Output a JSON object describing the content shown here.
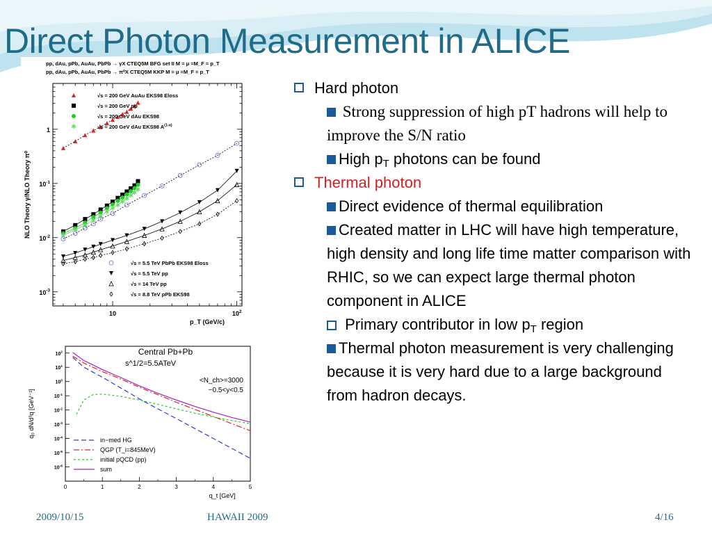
{
  "slide": {
    "title": "Direct Photon Measurement in ALICE",
    "colors": {
      "title": "#1f6b88",
      "bullet": "#1a5a9a",
      "highlight": "#d42020"
    }
  },
  "bullets": {
    "hard_photon": "Hard photon",
    "hard_sub1": "Strong suppression of high pT hadrons will help to improve the S/N ratio",
    "hard_sub2_a": "High p",
    "hard_sub2_sub": "T",
    "hard_sub2_b": " photons can be found",
    "thermal_photon": "Thermal photon",
    "thermal_sub1": "Direct evidence of thermal equilibration",
    "thermal_sub2": "Created matter in LHC will have high temperature, high density and long life time matter comparison with RHIC, so we can expect large thermal photon component in ALICE",
    "thermal_sub3_a": "Primary contributor in low p",
    "thermal_sub3_sub": "T",
    "thermal_sub3_b": " region",
    "thermal_sub4": "Thermal photon measurement is very challenging because it is very hard due to a large background from hadron decays."
  },
  "footer": {
    "date": "2009/10/15",
    "event": "HAWAII 2009",
    "page": "4/16"
  },
  "chart_data": [
    {
      "type": "scatter",
      "header_lines": [
        "pp, dAu, pPb, AuAu, PbPb → γX CTEQ5M BFG set II M = μ =M_F = p_T",
        "pp, dAu, pPb, AuAu, PbPb → π⁰X CTEQ5M KKP M = μ =M_F = p_T"
      ],
      "ylabel": "NLO Theory γ/NLO Theory π⁰",
      "xlabel": "p_T (GeV/c)",
      "x_log": true,
      "y_log": true,
      "xlim": [
        3.3,
        110
      ],
      "ylim": [
        0.00055,
        7
      ],
      "y_tick_labels": [
        {
          "v": 1,
          "t": "1"
        },
        {
          "v": 0.1,
          "t": "10^-1"
        },
        {
          "v": 0.01,
          "t": "10^-2"
        },
        {
          "v": 0.001,
          "t": "10^-3"
        }
      ],
      "x_tick_labels": [
        {
          "v": 10,
          "t": "10"
        },
        {
          "v": 100,
          "t": "10^2"
        }
      ],
      "legend_top": [
        "√s = 200 GeV AuAu EKS98 Eloss",
        "√s = 200 GeV pp",
        "√s = 200 GeV dAu EKS98",
        "√s = 200 GeV dAu EKS98 A^(1-α)"
      ],
      "legend_bottom": [
        "√s = 5.5 TeV PbPb EKS98 Eloss",
        "√s = 5.5 TeV pp",
        "√s = 14  TeV pp",
        "√s = 8.8 TeV pPb EKS98"
      ],
      "series": [
        {
          "name": "√s = 200 GeV AuAu EKS98 Eloss",
          "marker": "triangle",
          "color": "#e02020",
          "x": [
            4,
            5,
            6,
            7,
            8,
            9,
            10,
            11,
            12,
            13,
            14,
            15,
            16
          ],
          "y": [
            0.45,
            0.6,
            0.78,
            0.95,
            1.1,
            1.3,
            1.5,
            1.7,
            1.9,
            2.1,
            2.4,
            2.7,
            3.1
          ]
        },
        {
          "name": "√s = 200 GeV pp",
          "marker": "square",
          "color": "#000000",
          "x": [
            4,
            5,
            6,
            7,
            8,
            9,
            10,
            11,
            12,
            13,
            14,
            15,
            16
          ],
          "y": [
            0.013,
            0.017,
            0.022,
            0.027,
            0.033,
            0.039,
            0.046,
            0.054,
            0.062,
            0.071,
            0.081,
            0.092,
            0.11
          ]
        },
        {
          "name": "√s = 200 GeV dAu EKS98",
          "marker": "circle",
          "color": "#22cc22",
          "x": [
            4,
            5,
            6,
            7,
            8,
            9,
            10,
            11,
            12,
            13,
            14,
            15,
            16
          ],
          "y": [
            0.012,
            0.015,
            0.019,
            0.024,
            0.029,
            0.035,
            0.041,
            0.048,
            0.055,
            0.063,
            0.072,
            0.082,
            0.095
          ]
        },
        {
          "name": "√s = 200 GeV dAu EKS98 A^(1-α)",
          "marker": "star",
          "color": "#66dd66",
          "x": [
            4,
            5,
            6,
            7,
            8,
            9,
            10,
            11,
            12,
            13,
            14,
            15,
            16
          ],
          "y": [
            0.011,
            0.014,
            0.017,
            0.021,
            0.025,
            0.03,
            0.035,
            0.04,
            0.046,
            0.053,
            0.06,
            0.068,
            0.078
          ]
        },
        {
          "name": "√s = 5.5 TeV PbPb EKS98 Eloss",
          "marker": "open-circle",
          "color": "#6a6ad0",
          "x": [
            4,
            5,
            6,
            7,
            8,
            10,
            13,
            18,
            25,
            35,
            50,
            70,
            100
          ],
          "y": [
            0.0095,
            0.012,
            0.015,
            0.018,
            0.022,
            0.028,
            0.04,
            0.06,
            0.09,
            0.14,
            0.22,
            0.33,
            0.55
          ]
        },
        {
          "name": "√s = 5.5 TeV pp",
          "marker": "down-triangle",
          "color": "#000000",
          "x": [
            4,
            5,
            6,
            7,
            8,
            10,
            13,
            18,
            25,
            35,
            50,
            70,
            100
          ],
          "y": [
            0.0045,
            0.0052,
            0.006,
            0.0068,
            0.0076,
            0.009,
            0.011,
            0.0145,
            0.02,
            0.029,
            0.045,
            0.075,
            0.17
          ]
        },
        {
          "name": "√s = 14  TeV pp",
          "marker": "open-triangle",
          "color": "#000000",
          "x": [
            4,
            5,
            6,
            7,
            8,
            10,
            13,
            18,
            25,
            35,
            50,
            70,
            100
          ],
          "y": [
            0.0038,
            0.0043,
            0.0048,
            0.0054,
            0.006,
            0.007,
            0.0085,
            0.011,
            0.0145,
            0.02,
            0.03,
            0.048,
            0.095
          ]
        },
        {
          "name": "√s = 8.8 TeV pPb EKS98",
          "marker": "open-diamond",
          "color": "#000000",
          "x": [
            4,
            5,
            6,
            7,
            8,
            10,
            13,
            18,
            25,
            35,
            50,
            70,
            100
          ],
          "y": [
            0.0033,
            0.0036,
            0.004,
            0.0043,
            0.0047,
            0.0053,
            0.0062,
            0.0077,
            0.0098,
            0.013,
            0.018,
            0.027,
            0.048
          ]
        }
      ]
    },
    {
      "type": "line",
      "annotation_lines": [
        "Central Pb+Pb",
        "s^1/2=5.5ATeV",
        "<N_ch>=3000",
        "−0.5<y<0.5"
      ],
      "xlabel": "q_t [GeV]",
      "ylabel": "q₀ dN/d³q [GeV⁻²]",
      "y_log": true,
      "xlim": [
        0,
        5
      ],
      "ylim": [
        1e-07,
        300
      ],
      "x_ticks": [
        0,
        1,
        2,
        3,
        4,
        5
      ],
      "y_ticks": [
        {
          "v": 100,
          "t": "10^2"
        },
        {
          "v": 10,
          "t": "10^1"
        },
        {
          "v": 1,
          "t": "10^0"
        },
        {
          "v": 0.1,
          "t": "10^-1"
        },
        {
          "v": 0.01,
          "t": "10^-2"
        },
        {
          "v": 0.001,
          "t": "10^-3"
        },
        {
          "v": 0.0001,
          "t": "10^-4"
        },
        {
          "v": 1e-05,
          "t": "10^-5"
        },
        {
          "v": 1e-06,
          "t": "10^-6"
        }
      ],
      "series": [
        {
          "name": "in−med HG",
          "color": "#2a3ad8",
          "dash": "7,4",
          "x": [
            0.2,
            0.5,
            1,
            1.5,
            2,
            2.5,
            3,
            3.5,
            4,
            4.5,
            5
          ],
          "y": [
            50,
            10,
            2,
            0.35,
            0.06,
            0.012,
            0.0025,
            0.0005,
            0.0001,
            2e-05,
            4e-06
          ]
        },
        {
          "name": "QGP (T_i=845MeV)",
          "color": "#e02020",
          "dash": "8,3,2,3",
          "x": [
            0.2,
            0.5,
            1,
            1.5,
            2,
            2.5,
            3,
            3.5,
            4,
            4.5,
            5
          ],
          "y": [
            60,
            20,
            5,
            1.5,
            0.4,
            0.12,
            0.035,
            0.011,
            0.0035,
            0.0011,
            0.00035
          ]
        },
        {
          "name": "initial pQCD (pp)",
          "color": "#22cc22",
          "dash": "3,3",
          "x": [
            0.3,
            0.5,
            0.75,
            1,
            1.5,
            2,
            2.5,
            3,
            3.5,
            4,
            4.5,
            5
          ],
          "y": [
            0.005,
            0.05,
            0.12,
            0.13,
            0.09,
            0.05,
            0.025,
            0.012,
            0.006,
            0.0032,
            0.0018,
            0.0011
          ]
        },
        {
          "name": "sum",
          "color": "#aa22bb",
          "dash": "",
          "x": [
            0.2,
            0.5,
            1,
            1.5,
            2,
            2.5,
            3,
            3.5,
            4,
            4.5,
            5
          ],
          "y": [
            110,
            30,
            7,
            1.9,
            0.5,
            0.15,
            0.05,
            0.018,
            0.007,
            0.003,
            0.0014
          ]
        }
      ]
    }
  ]
}
